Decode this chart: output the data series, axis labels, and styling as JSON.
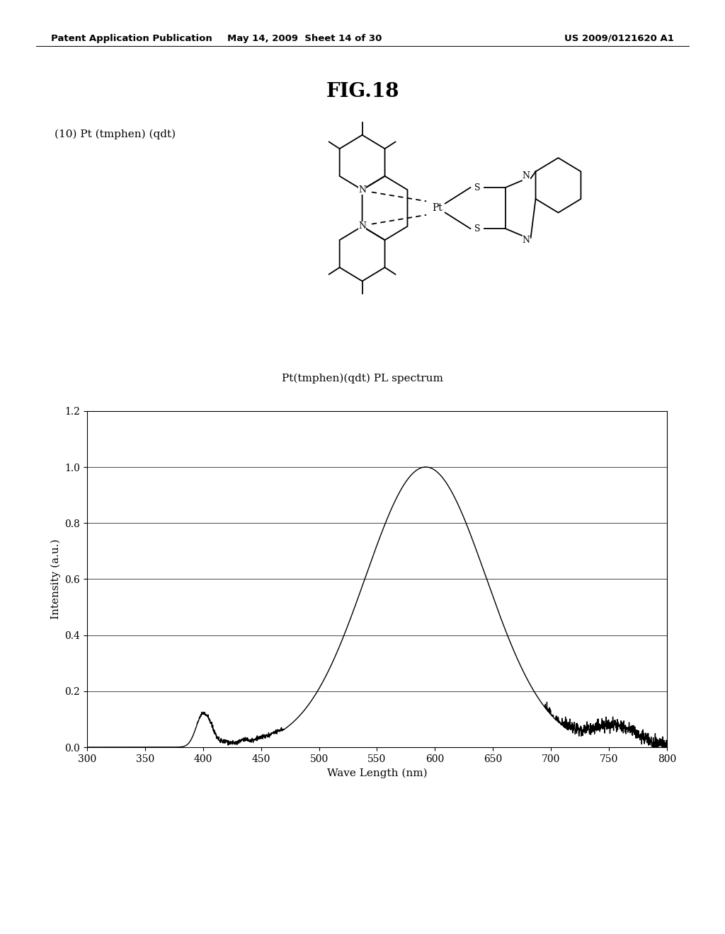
{
  "page_title_left": "Patent Application Publication",
  "page_title_center": "May 14, 2009  Sheet 14 of 30",
  "page_title_right": "US 2009/0121620 A1",
  "fig_label": "FIG.18",
  "compound_label": "(10) Pt (tmphen) (qdt)",
  "chart_title": "Pt(tmphen)(qdt) PL spectrum",
  "xlabel": "Wave Length (nm)",
  "ylabel": "Intensity (a.u.)",
  "xlim": [
    300,
    800
  ],
  "ylim": [
    0.0,
    1.2
  ],
  "xticks": [
    300,
    350,
    400,
    450,
    500,
    550,
    600,
    650,
    700,
    750,
    800
  ],
  "yticks": [
    0.0,
    0.2,
    0.4,
    0.6,
    0.8,
    1.0,
    1.2
  ],
  "background_color": "#ffffff",
  "line_color": "#000000"
}
